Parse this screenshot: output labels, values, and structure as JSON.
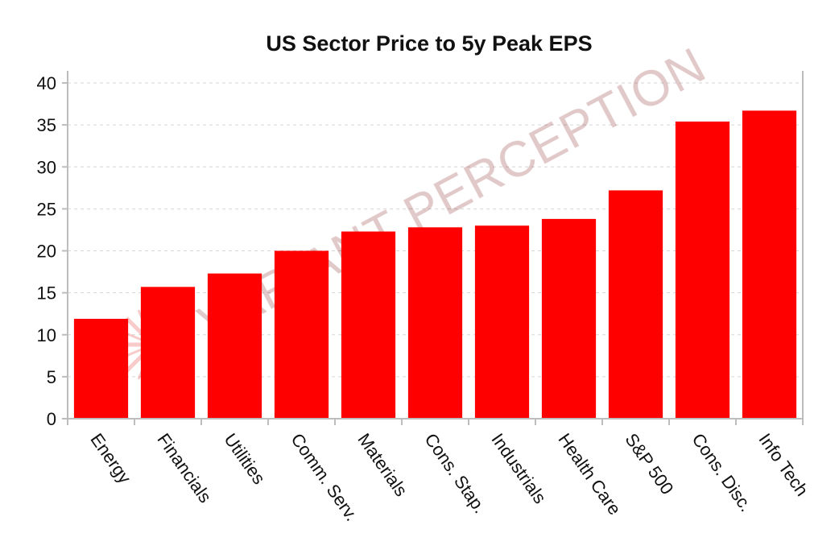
{
  "chart_data": {
    "type": "bar",
    "title": "US Sector Price to 5y Peak EPS",
    "xlabel": "",
    "ylabel": "",
    "categories": [
      "Energy",
      "Financials",
      "Utilities",
      "Comm. Serv.",
      "Materials",
      "Cons. Stap.",
      "Industrials",
      "Health Care",
      "S&P 500",
      "Cons. Disc.",
      "Info Tech"
    ],
    "values": [
      11.9,
      15.7,
      17.3,
      20.0,
      22.3,
      22.8,
      23.0,
      23.8,
      27.2,
      35.4,
      36.7
    ],
    "ylim": [
      0,
      40
    ],
    "yticks": [
      "0",
      "5",
      "10",
      "15",
      "20",
      "25",
      "30",
      "35",
      "40"
    ],
    "grid": true,
    "legend": "none",
    "bar_color": "#ff0000"
  },
  "watermark": {
    "text": "VARIANT PERCEPTION"
  }
}
